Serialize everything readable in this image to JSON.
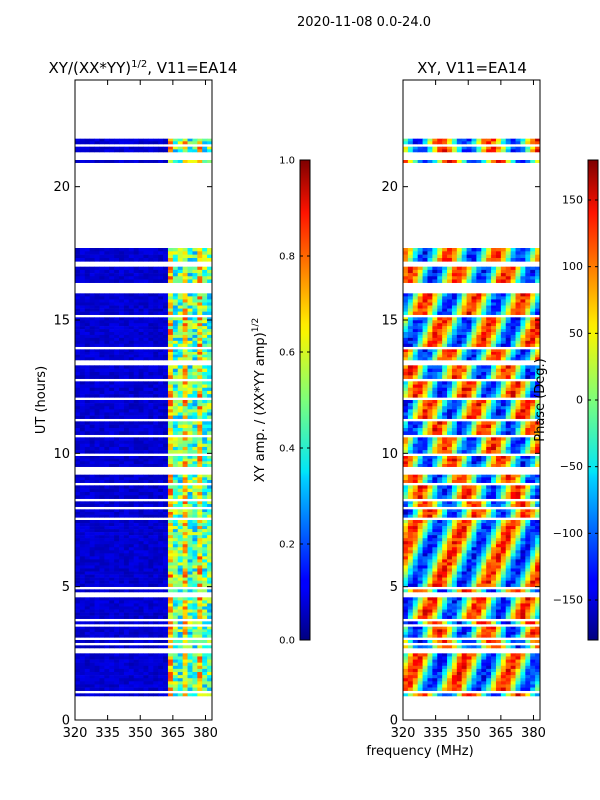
{
  "suptitle": "2020-11-08 0.0-24.0",
  "shared_xlabel": "frequency (MHz)",
  "colors": {
    "background": "#ffffff",
    "jet_low": "#00007f",
    "jet_high": "#7f0000",
    "missing": "#ffffff"
  },
  "observed_hour_bands": [
    [
      0.9,
      1.0
    ],
    [
      1.1,
      2.5
    ],
    [
      2.7,
      2.8
    ],
    [
      2.9,
      3.0
    ],
    [
      3.1,
      3.5
    ],
    [
      3.6,
      3.7
    ],
    [
      3.8,
      4.6
    ],
    [
      4.8,
      4.9
    ],
    [
      5.0,
      7.5
    ],
    [
      7.6,
      7.9
    ],
    [
      8.0,
      8.2
    ],
    [
      8.3,
      8.8
    ],
    [
      8.9,
      9.2
    ],
    [
      9.5,
      9.9
    ],
    [
      10.0,
      10.6
    ],
    [
      10.7,
      11.2
    ],
    [
      11.3,
      12.0
    ],
    [
      12.1,
      12.7
    ],
    [
      12.8,
      13.3
    ],
    [
      13.5,
      13.9
    ],
    [
      14.0,
      15.1
    ],
    [
      15.2,
      16.0
    ],
    [
      16.4,
      17.0
    ],
    [
      17.2,
      17.7
    ],
    [
      20.9,
      21.0
    ],
    [
      21.3,
      21.5
    ],
    [
      21.6,
      21.8
    ]
  ],
  "chart_data": [
    {
      "type": "heatmap",
      "title_main": "XY/(XX*YY)",
      "title_sup": "1/2",
      "title_tail": ", V11=EA14",
      "xlabel": "",
      "ylabel": "UT (hours)",
      "xlim": [
        320,
        383
      ],
      "ylim": [
        0,
        24
      ],
      "xticks": [
        320,
        335,
        350,
        365,
        380
      ],
      "xtick_labels": [
        "320",
        "335",
        "350",
        "365",
        "380"
      ],
      "yticks": [
        0,
        5,
        10,
        15,
        20
      ],
      "ytick_labels": [
        "0",
        "5",
        "10",
        "15",
        "20"
      ],
      "value_range": [
        0.0,
        1.0
      ],
      "background_level": 0.05,
      "bright_band_mhz": [
        362,
        382
      ],
      "bright_band_level": 0.45,
      "colorbar": {
        "label_main": "XY amp. / (XX*YY amp)",
        "label_sup": "1/2",
        "range": [
          0.0,
          1.0
        ],
        "ticks": [
          0.0,
          0.2,
          0.4,
          0.6,
          0.8,
          1.0
        ],
        "tick_labels": [
          "0.0",
          "0.2",
          "0.4",
          "0.6",
          "0.8",
          "1.0"
        ]
      }
    },
    {
      "type": "heatmap",
      "title_main": "XY, V11=EA14",
      "xlabel": "",
      "ylabel": "",
      "xlim": [
        320,
        383
      ],
      "ylim": [
        0,
        24
      ],
      "xticks": [
        320,
        335,
        350,
        365,
        380
      ],
      "xtick_labels": [
        "320",
        "335",
        "350",
        "365",
        "380"
      ],
      "yticks": [
        0,
        5,
        10,
        15,
        20
      ],
      "ytick_labels": [
        "0",
        "5",
        "10",
        "15",
        "20"
      ],
      "value_range": [
        -180,
        180
      ],
      "colorbar": {
        "label_main": "Phase (Deg.)",
        "range": [
          -180,
          180
        ],
        "ticks": [
          -150,
          -100,
          -50,
          0,
          50,
          100,
          150
        ],
        "tick_labels": [
          "−150",
          "−100",
          "−50",
          "0",
          "50",
          "100",
          "150"
        ]
      }
    }
  ]
}
